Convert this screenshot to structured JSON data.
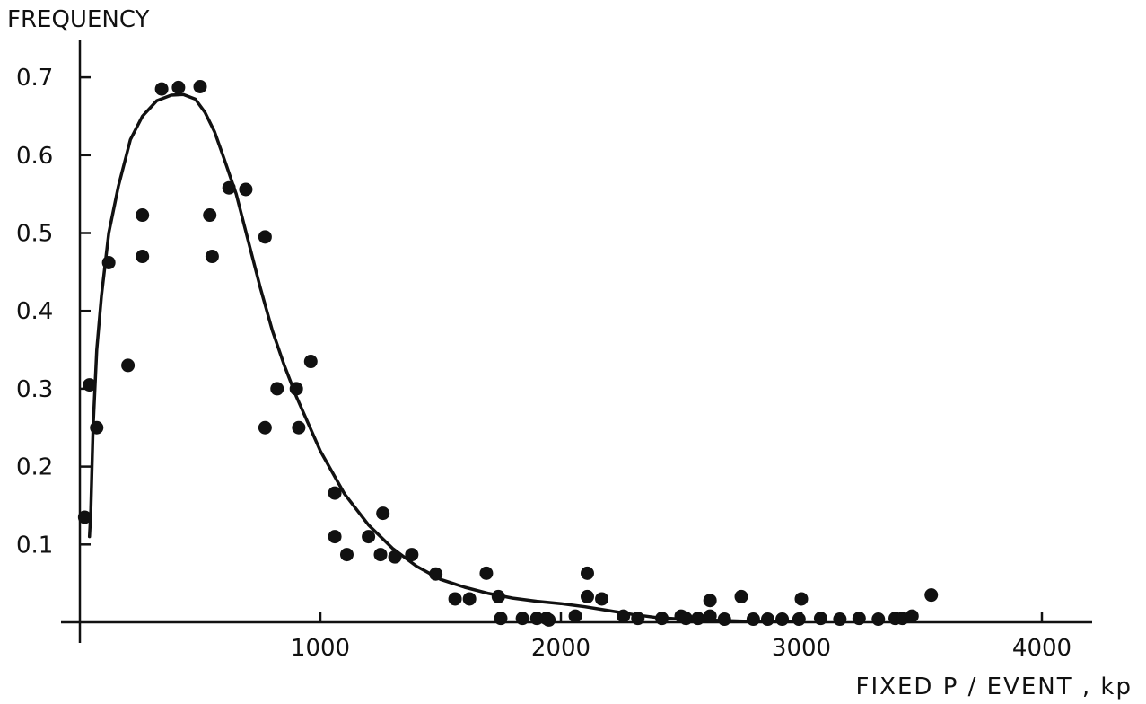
{
  "chart_data": {
    "type": "scatter",
    "title": "",
    "xlabel": "FIXED P / EVENT , kp",
    "ylabel": "FREQUENCY",
    "xlim": [
      0,
      4200
    ],
    "ylim": [
      0,
      0.72
    ],
    "grid": false,
    "legend": "none",
    "x_ticks": [
      1000,
      2000,
      3000,
      4000
    ],
    "x_tick_labels": [
      "1000",
      "2000",
      "3000",
      "4000"
    ],
    "y_ticks": [
      0.1,
      0.2,
      0.3,
      0.4,
      0.5,
      0.6,
      0.7
    ],
    "y_tick_labels": [
      "0.1",
      "0.2",
      "0.3",
      "0.4",
      "0.5",
      "0.6",
      "0.7"
    ],
    "series": [
      {
        "kind": "points",
        "x": [
          20,
          40,
          70,
          120,
          200,
          260,
          260,
          340,
          410,
          500,
          540,
          550,
          620,
          690,
          770,
          770,
          820,
          900,
          910,
          960,
          1060,
          1060,
          1110,
          1200,
          1250,
          1260,
          1310,
          1380,
          1480,
          1560,
          1620,
          1690,
          1740,
          1750,
          1840,
          1900,
          1940,
          1950,
          2060,
          2110,
          2110,
          2170,
          2260,
          2320,
          2420,
          2500,
          2520,
          2570,
          2620,
          2620,
          2680,
          2750,
          2800,
          2860,
          2920,
          2990,
          3000,
          3080,
          3160,
          3240,
          3320,
          3390,
          3420,
          3460,
          3540
        ],
        "y": [
          0.135,
          0.305,
          0.25,
          0.462,
          0.33,
          0.523,
          0.47,
          0.685,
          0.687,
          0.688,
          0.523,
          0.47,
          0.558,
          0.556,
          0.495,
          0.25,
          0.3,
          0.3,
          0.25,
          0.335,
          0.166,
          0.11,
          0.087,
          0.11,
          0.087,
          0.14,
          0.084,
          0.087,
          0.062,
          0.03,
          0.03,
          0.063,
          0.033,
          0.005,
          0.005,
          0.005,
          0.005,
          0.003,
          0.008,
          0.063,
          0.033,
          0.03,
          0.008,
          0.005,
          0.005,
          0.008,
          0.005,
          0.005,
          0.008,
          0.028,
          0.004,
          0.033,
          0.004,
          0.004,
          0.004,
          0.004,
          0.03,
          0.005,
          0.004,
          0.005,
          0.004,
          0.005,
          0.005,
          0.008,
          0.035
        ]
      },
      {
        "kind": "fitted-curve",
        "x": [
          40,
          45,
          55,
          70,
          90,
          120,
          160,
          210,
          260,
          320,
          380,
          430,
          480,
          520,
          560,
          600,
          650,
          700,
          750,
          800,
          850,
          900,
          1000,
          1100,
          1200,
          1300,
          1400,
          1500,
          1600,
          1700,
          1800,
          1900,
          2000,
          2100,
          2200,
          2300,
          2400,
          2500,
          2600,
          2700,
          2800,
          2900,
          3000
        ],
        "y": [
          0.11,
          0.14,
          0.25,
          0.35,
          0.42,
          0.5,
          0.56,
          0.62,
          0.65,
          0.67,
          0.677,
          0.678,
          0.672,
          0.655,
          0.63,
          0.595,
          0.55,
          0.49,
          0.43,
          0.375,
          0.33,
          0.29,
          0.22,
          0.165,
          0.125,
          0.095,
          0.072,
          0.055,
          0.045,
          0.037,
          0.031,
          0.027,
          0.024,
          0.02,
          0.015,
          0.01,
          0.006,
          0.004,
          0.003,
          0.002,
          0.001,
          0.001,
          0.001
        ]
      }
    ]
  }
}
